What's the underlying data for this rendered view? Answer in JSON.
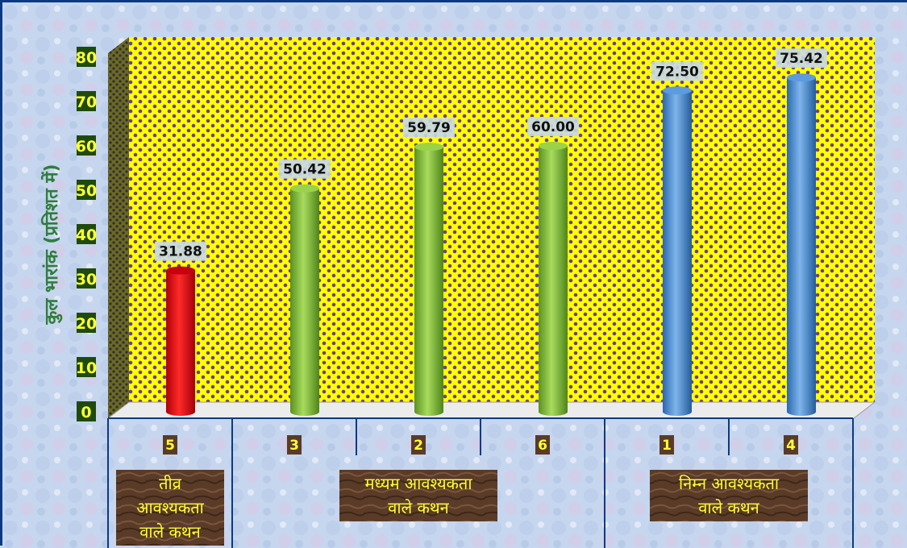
{
  "chart_data": {
    "type": "bar",
    "title": "",
    "ylabel": "कुल भारांक (प्रतिशत में)",
    "xlabel": "",
    "ylim": [
      0,
      80
    ],
    "yticks": [
      0,
      10,
      20,
      30,
      40,
      50,
      60,
      70,
      80
    ],
    "categories": [
      "5",
      "3",
      "2",
      "6",
      "1",
      "4"
    ],
    "values": [
      31.88,
      50.42,
      59.79,
      60.0,
      72.5,
      75.42
    ],
    "value_labels": [
      "31.88",
      "50.42",
      "59.79",
      "60.00",
      "72.50",
      "75.42"
    ],
    "bar_colors": [
      "#e8161a",
      "#86c236",
      "#86c236",
      "#86c236",
      "#4a8fd6",
      "#4a8fd6"
    ],
    "groups": [
      {
        "label_lines": [
          "तीव्र",
          "आवश्यकता",
          "वाले कथन"
        ],
        "span": [
          0,
          1
        ]
      },
      {
        "label_lines": [
          "मध्यम आवश्यकता",
          "वाले कथन"
        ],
        "span": [
          1,
          4
        ]
      },
      {
        "label_lines": [
          "निम्न आवश्यकता",
          "वाले कथन"
        ],
        "span": [
          4,
          6
        ]
      }
    ],
    "grid": false,
    "legend": "none"
  },
  "colors": {
    "wall": "#ffff00",
    "wall_dots": "#6a3c96",
    "frame": "#0b3a82",
    "tick_bg": "#1f4a0e",
    "tick_text": "#ffff33",
    "ylabel_text": "#2f7d3b",
    "group_label_bg": "#5a3b28",
    "group_label_text": "#ffff33",
    "value_label_bg": "#c8d8e8"
  }
}
